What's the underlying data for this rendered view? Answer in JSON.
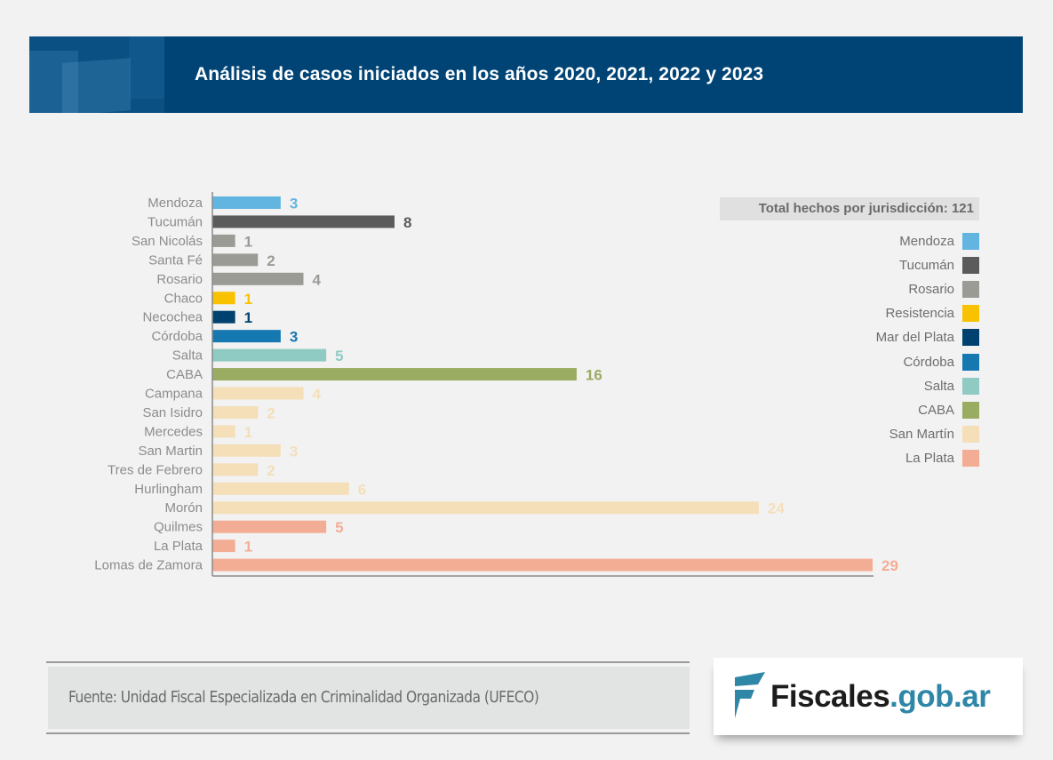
{
  "header": {
    "title": "Análisis de casos iniciados en los años 2020, 2021, 2022 y 2023"
  },
  "chart_data": {
    "type": "bar",
    "orientation": "horizontal",
    "title": "Análisis de casos iniciados en los años 2020, 2021, 2022 y 2023",
    "xlabel": "",
    "ylabel": "",
    "xlim": [
      0,
      29
    ],
    "grid": false,
    "legend_placement": "right",
    "legend_title": "Total hechos por jurisdicción: 121",
    "categories": [
      "Mendoza",
      "Tucumán",
      "San Nicolás",
      "Santa Fé",
      "Rosario",
      "Chaco",
      "Necochea",
      "Córdoba",
      "Salta",
      "CABA",
      "Campana",
      "San Isidro",
      "Mercedes",
      "San Martin",
      "Tres de Febrero",
      "Hurlingham",
      "Morón",
      "Quilmes",
      "La Plata",
      "Lomas de Zamora"
    ],
    "values": [
      3,
      8,
      1,
      2,
      4,
      1,
      1,
      3,
      5,
      16,
      4,
      2,
      1,
      3,
      2,
      6,
      24,
      5,
      1,
      29
    ],
    "jurisdiction": [
      "Mendoza",
      "Tucumán",
      "Rosario",
      "Rosario",
      "Rosario",
      "Resistencia",
      "Mar del Plata",
      "Córdoba",
      "Salta",
      "CABA",
      "San Martín",
      "San Martín",
      "San Martín",
      "San Martín",
      "San Martín",
      "San Martín",
      "San Martín",
      "La Plata",
      "La Plata",
      "La Plata"
    ],
    "legend": [
      {
        "name": "Mendoza",
        "color": "#62b5e1"
      },
      {
        "name": "Tucumán",
        "color": "#5b5b5b"
      },
      {
        "name": "Rosario",
        "color": "#9b9b96"
      },
      {
        "name": "Resistencia",
        "color": "#f9c200"
      },
      {
        "name": "Mar del Plata",
        "color": "#00426f"
      },
      {
        "name": "Córdoba",
        "color": "#1578b0"
      },
      {
        "name": "Salta",
        "color": "#8fcac3"
      },
      {
        "name": "CABA",
        "color": "#9aab62"
      },
      {
        "name": "San Martín",
        "color": "#f4dfb9"
      },
      {
        "name": "La Plata",
        "color": "#f4ad95"
      }
    ]
  },
  "footer": {
    "source": "Fuente: Unidad Fiscal Especializada en Criminalidad Organizada (UFECO)",
    "logo_main": "Fiscales",
    "logo_domain": ".gob.ar"
  }
}
